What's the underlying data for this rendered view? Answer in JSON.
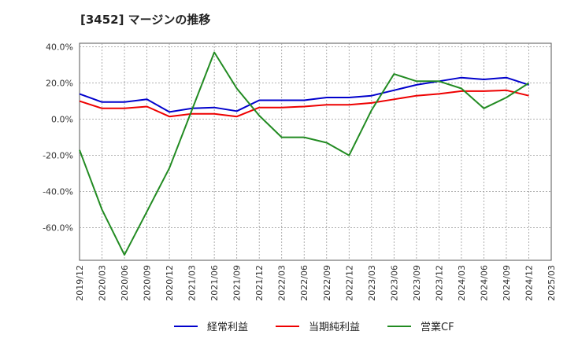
{
  "chart_data": {
    "type": "line",
    "title": "[3452]  マージンの推移",
    "x_ticks": [
      "2019/12",
      "2020/03",
      "2020/06",
      "2020/09",
      "2020/12",
      "2021/03",
      "2021/06",
      "2021/09",
      "2021/12",
      "2022/03",
      "2022/06",
      "2022/09",
      "2022/12",
      "2023/03",
      "2023/06",
      "2023/09",
      "2023/12",
      "2024/03",
      "2024/06",
      "2024/09",
      "2024/12",
      "2025/03"
    ],
    "y_ticks": [
      "40.0%",
      "20.0%",
      "0.0%",
      "-20.0%",
      "-40.0%",
      "-60.0%"
    ],
    "y_tick_values": [
      40,
      20,
      0,
      -20,
      -40,
      -60
    ],
    "ylim": [
      -78,
      42
    ],
    "grid": true,
    "legend_position": "bottom",
    "series": [
      {
        "name": "経常利益",
        "color": "#0000cc",
        "x": [
          "2019/12",
          "2020/03",
          "2020/06",
          "2020/09",
          "2020/12",
          "2021/03",
          "2021/06",
          "2021/09",
          "2021/12",
          "2022/03",
          "2022/06",
          "2022/09",
          "2022/12",
          "2023/03",
          "2023/06",
          "2023/09",
          "2023/12",
          "2024/03",
          "2024/06",
          "2024/09",
          "2024/12"
        ],
        "values": [
          14,
          9.5,
          9.5,
          11,
          4,
          6,
          6.5,
          4.5,
          10.5,
          10.5,
          10.5,
          12,
          12,
          13,
          16,
          19,
          21,
          23,
          22,
          23,
          19
        ]
      },
      {
        "name": "当期純利益",
        "color": "#ee0000",
        "x": [
          "2019/12",
          "2020/03",
          "2020/06",
          "2020/09",
          "2020/12",
          "2021/03",
          "2021/06",
          "2021/09",
          "2021/12",
          "2022/03",
          "2022/06",
          "2022/09",
          "2022/12",
          "2023/03",
          "2023/06",
          "2023/09",
          "2023/12",
          "2024/03",
          "2024/06",
          "2024/09",
          "2024/12"
        ],
        "values": [
          10,
          6,
          6,
          7,
          1.5,
          3,
          3,
          1.5,
          6.5,
          6.5,
          7,
          8,
          8,
          9,
          11,
          13,
          14,
          15.5,
          15.5,
          16,
          13
        ]
      },
      {
        "name": "営業CF",
        "color": "#228b22",
        "x": [
          "2019/12",
          "2020/03",
          "2020/06",
          "2020/09",
          "2020/12",
          "2021/03",
          "2021/06",
          "2021/09",
          "2021/12",
          "2022/03",
          "2022/06",
          "2022/09",
          "2022/12",
          "2023/03",
          "2023/06",
          "2023/09",
          "2023/12",
          "2024/03",
          "2024/06",
          "2024/09",
          "2024/12"
        ],
        "values": [
          -17,
          -50,
          -75,
          -51,
          -27,
          5,
          37,
          17,
          2,
          -10,
          -10,
          -13,
          -20,
          5,
          25,
          21,
          21,
          17,
          6,
          12,
          20
        ]
      }
    ]
  }
}
